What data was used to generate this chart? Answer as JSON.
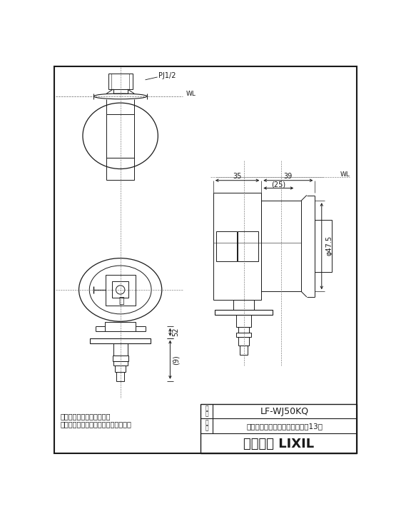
{
  "bg_color": "#ffffff",
  "line_color": "#1a1a1a",
  "title": "LF-WJ50KQ",
  "product_name": "紧急止水弁付洗濯機用単水栓（13）",
  "company": "株式会示 LIXIL",
  "note1": "・（　）内は、参考寸法。",
  "note2": "・（逆止弁付、全自動洗濯機対応型）",
  "label_pj": "PJ1/2",
  "label_wl": "WL",
  "label_wl2": "WL",
  "label_35": "35",
  "label_39": "39",
  "label_25": "(25)",
  "label_52": "52",
  "label_9": "(9)",
  "label_phi": "φ47.5",
  "label_up": "上"
}
